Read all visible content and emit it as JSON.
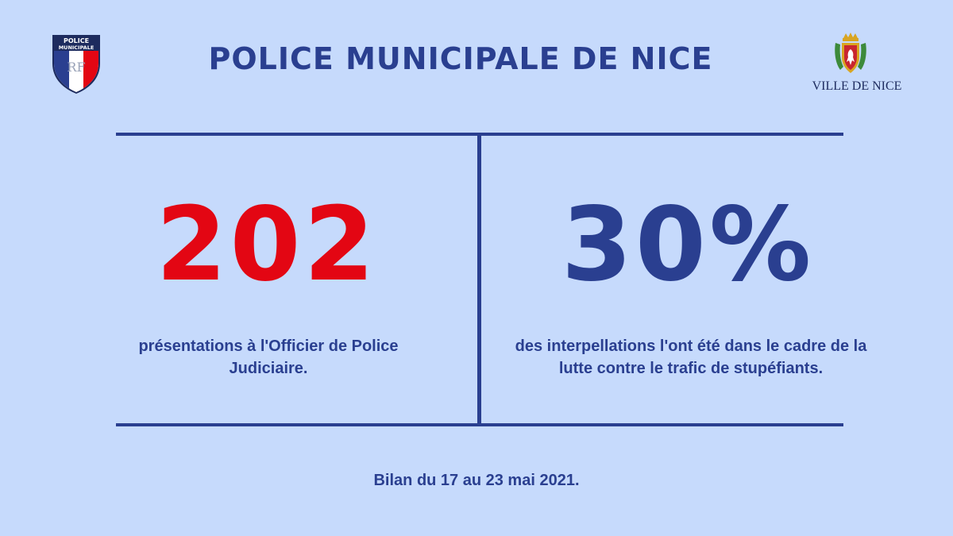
{
  "header": {
    "title": "POLICE MUNICIPALE DE NICE",
    "left_logo": {
      "icon": "police-municipale-badge-icon",
      "text_lines": [
        "POLICE",
        "MUNICIPALE"
      ],
      "monogram": "RF"
    },
    "right_logo": {
      "icon": "ville-de-nice-crest-icon",
      "label": "VILLE DE NICE"
    }
  },
  "stats": [
    {
      "value": "202",
      "label": "présentations à l'Officier de Police Judiciaire.",
      "color": "#e30613"
    },
    {
      "value": "30%",
      "label": "des interpellations l'ont été dans le cadre de la lutte contre le trafic de stupéfiants.",
      "color": "#2a3f90"
    }
  ],
  "footer": {
    "text": "Bilan du 17 au 23 mai 2021."
  },
  "colors": {
    "background": "#c6dafc",
    "primary": "#2a3f90",
    "accent_red": "#e30613"
  }
}
